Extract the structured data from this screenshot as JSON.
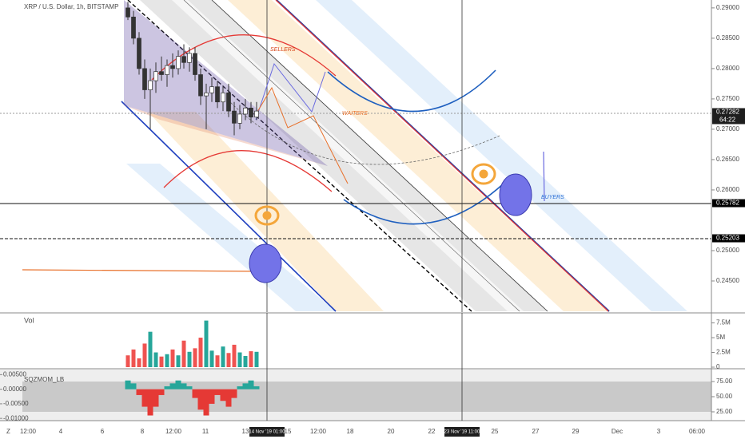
{
  "chart_data": {
    "type": "candlestick",
    "title": "XRP / U.S. Dollar, 1h, BITSTAMP",
    "open": [
      0.29,
      0.2885,
      0.285,
      0.28,
      0.2765,
      0.278,
      0.2795,
      0.279,
      0.2805,
      0.28,
      0.282,
      0.281,
      0.2825,
      0.279,
      0.2755,
      0.276,
      0.277,
      0.2745,
      0.276,
      0.273,
      0.271,
      0.2725,
      0.2735,
      0.272
    ],
    "high": [
      0.291,
      0.2895,
      0.286,
      0.2815,
      0.28,
      0.281,
      0.282,
      0.2815,
      0.2825,
      0.283,
      0.284,
      0.2835,
      0.2835,
      0.28,
      0.2775,
      0.2785,
      0.278,
      0.277,
      0.2775,
      0.2745,
      0.274,
      0.275,
      0.2745,
      0.2745
    ],
    "low": [
      0.288,
      0.284,
      0.279,
      0.275,
      0.27,
      0.276,
      0.278,
      0.277,
      0.2785,
      0.279,
      0.28,
      0.2795,
      0.278,
      0.274,
      0.27,
      0.2745,
      0.2735,
      0.273,
      0.272,
      0.269,
      0.27,
      0.2715,
      0.271,
      0.2715
    ],
    "close": [
      0.2885,
      0.285,
      0.28,
      0.2765,
      0.278,
      0.2795,
      0.279,
      0.2805,
      0.28,
      0.282,
      0.281,
      0.2825,
      0.279,
      0.2755,
      0.276,
      0.277,
      0.2745,
      0.276,
      0.273,
      0.271,
      0.2725,
      0.2735,
      0.272,
      0.273
    ],
    "ylim": [
      0.24,
      0.2913
    ],
    "yticks": [
      {
        "value": 0.29,
        "label": "0.29000"
      },
      {
        "value": 0.285,
        "label": "0.28500"
      },
      {
        "value": 0.28,
        "label": "0.28000"
      },
      {
        "value": 0.275,
        "label": "0.27500"
      },
      {
        "value": 0.27,
        "label": "0.27000"
      },
      {
        "value": 0.265,
        "label": "0.26500"
      },
      {
        "value": 0.26,
        "label": "0.26000"
      },
      {
        "value": 0.25,
        "label": "0.25000"
      },
      {
        "value": 0.245,
        "label": "0.24500"
      }
    ],
    "price_labels": [
      {
        "value": 0.27282,
        "label": "0.27282"
      },
      {
        "value": 0.25782,
        "label": "0.25782"
      },
      {
        "value": 0.25203,
        "label": "0.25203"
      }
    ],
    "countdown": "64:22",
    "annotations": [
      "SELLERS",
      "WAITERS",
      "BUYERS"
    ],
    "x_labels": [
      "12:00",
      "4",
      "6",
      "8",
      "12:00",
      "11",
      "13",
      "14 Nov '19  01:00",
      "15",
      "12:00",
      "18",
      "20",
      "22",
      "23 Nov '19  11:00",
      "25",
      "27",
      "29",
      "Dec",
      "3",
      "06:00"
    ],
    "timezone_button": "Z",
    "volume": {
      "title": "Vol",
      "values": [
        2,
        3,
        1.5,
        4,
        6,
        2.5,
        1.8,
        2.2,
        3,
        2,
        4.5,
        2.6,
        3.2,
        5,
        7.9,
        2.8,
        2,
        3.5,
        2.4,
        3.8,
        2.5,
        1.9,
        2.7,
        2.6
      ],
      "ylim": [
        0,
        9.2
      ],
      "yticks": [
        0,
        {
          "value": 2.5,
          "label": "2.5M"
        },
        {
          "value": 5,
          "label": "5M"
        },
        {
          "value": 7.5,
          "label": "7.5M"
        }
      ]
    },
    "oscillator": {
      "title": "SQZMOM_LB",
      "values": [
        0.003,
        0.002,
        -0.002,
        -0.006,
        -0.009,
        -0.006,
        -0.002,
        0.001,
        0.002,
        0.003,
        0.002,
        0.001,
        -0.003,
        -0.007,
        -0.009,
        -0.005,
        -0.002,
        -0.004,
        -0.006,
        -0.003,
        0.001,
        0.002,
        0.003,
        0.001
      ],
      "ylim": [
        -0.0105,
        0.0062
      ],
      "yticks": [
        {
          "value": 0.005,
          "label": "0.00500"
        },
        {
          "value": 0,
          "label": "0.00000"
        },
        {
          "value": -0.005,
          "label": "-0.00500"
        },
        {
          "value": -0.01,
          "label": "-0.01000"
        }
      ],
      "y2lim": [
        11.8,
        92.1
      ],
      "y2ticks": [
        {
          "value": 75,
          "label": "75.00"
        },
        {
          "value": 50,
          "label": "50.00"
        },
        {
          "value": 25,
          "label": "25.00"
        }
      ]
    }
  }
}
